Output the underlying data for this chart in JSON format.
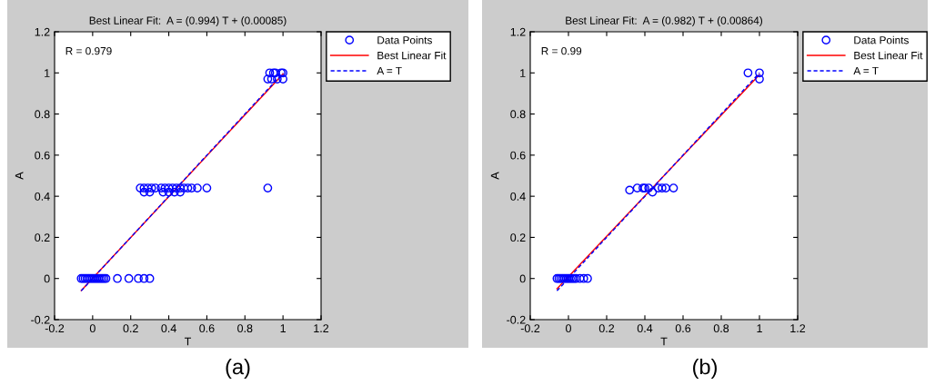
{
  "chart_data": [
    {
      "type": "scatter",
      "title": "Best Linear Fit:  A = (0.994) T + (0.00085)",
      "xlabel": "T",
      "ylabel": "A",
      "xlim": [
        -0.2,
        1.2
      ],
      "ylim": [
        -0.2,
        1.2
      ],
      "xticks": [
        -0.2,
        0,
        0.2,
        0.4,
        0.6,
        0.8,
        1,
        1.2
      ],
      "yticks": [
        -0.2,
        0,
        0.2,
        0.4,
        0.6,
        0.8,
        1,
        1.2
      ],
      "grid": false,
      "legend": "top right",
      "annotations": [
        "R = 0.979",
        "(a)"
      ],
      "series": [
        {
          "name": "Data Points",
          "marker": "circle",
          "color": "#0000ff",
          "x": [
            -0.06,
            -0.05,
            -0.04,
            -0.03,
            -0.02,
            -0.01,
            0,
            0.01,
            0.02,
            0.03,
            0.04,
            0.05,
            0.06,
            0.07,
            0.13,
            0.19,
            0.24,
            0.27,
            0.3,
            0.25,
            0.27,
            0.29,
            0.31,
            0.33,
            0.36,
            0.38,
            0.4,
            0.42,
            0.44,
            0.46,
            0.48,
            0.5,
            0.52,
            0.55,
            0.6,
            0.92,
            0.27,
            0.3,
            0.37,
            0.4,
            0.43,
            0.46,
            0.93,
            0.95,
            0.96,
            0.99,
            1.0,
            0.92,
            0.94,
            0.97,
            1.0
          ],
          "values": [
            0,
            0,
            0,
            0,
            0,
            0,
            0,
            0,
            0,
            0,
            0,
            0,
            0,
            0,
            0,
            0,
            0,
            0,
            0,
            0.44,
            0.44,
            0.44,
            0.44,
            0.44,
            0.44,
            0.44,
            0.44,
            0.44,
            0.44,
            0.44,
            0.44,
            0.44,
            0.44,
            0.44,
            0.44,
            0.44,
            0.42,
            0.42,
            0.42,
            0.42,
            0.42,
            0.42,
            1.0,
            1.0,
            1.0,
            1.0,
            1.0,
            0.97,
            0.97,
            0.97,
            0.97
          ]
        },
        {
          "name": "Best Linear Fit",
          "type": "line",
          "line_style": "solid",
          "color": "#ff0000",
          "x": [
            -0.06,
            1.0
          ],
          "values": [
            -0.059,
            0.995
          ]
        },
        {
          "name": "A = T",
          "type": "line",
          "line_style": "dashed",
          "color": "#0000ff",
          "x": [
            -0.06,
            1.0
          ],
          "values": [
            -0.06,
            1.0
          ]
        }
      ]
    },
    {
      "type": "scatter",
      "title": "Best Linear Fit:  A = (0.982) T + (0.00864)",
      "xlabel": "T",
      "ylabel": "A",
      "xlim": [
        -0.2,
        1.2
      ],
      "ylim": [
        -0.2,
        1.2
      ],
      "xticks": [
        -0.2,
        0,
        0.2,
        0.4,
        0.6,
        0.8,
        1,
        1.2
      ],
      "yticks": [
        -0.2,
        0,
        0.2,
        0.4,
        0.6,
        0.8,
        1,
        1.2
      ],
      "grid": false,
      "legend": "top right",
      "annotations": [
        "R = 0.99",
        "(b)"
      ],
      "series": [
        {
          "name": "Data Points",
          "marker": "circle",
          "color": "#0000ff",
          "x": [
            -0.06,
            -0.05,
            -0.04,
            -0.03,
            -0.02,
            -0.01,
            0,
            0.01,
            0.02,
            0.03,
            0.04,
            0.06,
            0.08,
            0.1,
            0.32,
            0.36,
            0.39,
            0.4,
            0.42,
            0.44,
            0.47,
            0.49,
            0.51,
            0.55,
            0.94,
            1.0,
            1.0
          ],
          "values": [
            0,
            0,
            0,
            0,
            0,
            0,
            0,
            0,
            0,
            0,
            0,
            0,
            0,
            0,
            0.43,
            0.44,
            0.44,
            0.44,
            0.44,
            0.42,
            0.44,
            0.44,
            0.44,
            0.44,
            1.0,
            1.0,
            0.97
          ]
        },
        {
          "name": "Best Linear Fit",
          "type": "line",
          "line_style": "solid",
          "color": "#ff0000",
          "x": [
            -0.06,
            1.0
          ],
          "values": [
            -0.05,
            0.991
          ]
        },
        {
          "name": "A = T",
          "type": "line",
          "line_style": "dashed",
          "color": "#0000ff",
          "x": [
            -0.06,
            1.0
          ],
          "values": [
            -0.06,
            1.0
          ]
        }
      ]
    }
  ]
}
